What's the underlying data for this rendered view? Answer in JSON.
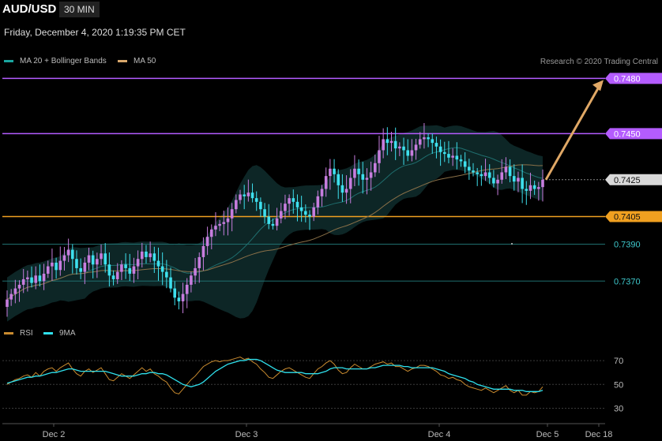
{
  "header": {
    "symbol": "AUD/USD",
    "timeframe": "30 MIN",
    "datetime": "Friday, December 4, 2020 1:19:35 PM CET",
    "copyright": "Research © 2020 Trading Central"
  },
  "legend_main": [
    {
      "label": "MA 20 + Bollinger Bands",
      "color": "#1aa6a0"
    },
    {
      "label": "MA 50",
      "color": "#d9a86c"
    }
  ],
  "legend_rsi": [
    {
      "label": "RSI",
      "color": "#c98b2f"
    },
    {
      "label": "9MA",
      "color": "#2fe0ec"
    }
  ],
  "colors": {
    "background": "#000000",
    "resistance": "#b45cff",
    "support_orange": "#f0a020",
    "support_teal": "#1f6e6e",
    "candle_up": "#c77dde",
    "candle_down": "#3ee0ee",
    "arrow": "#e0a866",
    "band_fill": "#0e2a2a"
  },
  "chart_data": [
    {
      "type": "candlestick",
      "title": "AUD/USD",
      "ylim": [
        0.7347,
        0.7484
      ],
      "x_ticks": [
        "Dec 2",
        "Dec 3",
        "Dec 4",
        "Dec 5",
        "Dec 18"
      ],
      "levels": [
        {
          "value": 0.748,
          "label": "0.7480",
          "kind": "resistance"
        },
        {
          "value": 0.745,
          "label": "0.7450",
          "kind": "resistance"
        },
        {
          "value": 0.7425,
          "label": "0.7425",
          "kind": "last"
        },
        {
          "value": 0.7405,
          "label": "0.7405",
          "kind": "support"
        },
        {
          "value": 0.739,
          "label": "0.7390",
          "kind": "support2"
        },
        {
          "value": 0.737,
          "label": "0.7370",
          "kind": "support2"
        }
      ],
      "projection": {
        "from": 0.7425,
        "to": 0.748
      },
      "close": [
        0.736,
        0.7363,
        0.7366,
        0.7368,
        0.7371,
        0.7372,
        0.7369,
        0.7373,
        0.737,
        0.7374,
        0.7378,
        0.738,
        0.7376,
        0.7381,
        0.7384,
        0.7387,
        0.7382,
        0.7377,
        0.7375,
        0.738,
        0.7384,
        0.7379,
        0.7382,
        0.7385,
        0.7379,
        0.7373,
        0.7371,
        0.7375,
        0.7379,
        0.7377,
        0.7374,
        0.7378,
        0.7382,
        0.7386,
        0.7383,
        0.7385,
        0.7381,
        0.7378,
        0.7375,
        0.7372,
        0.7366,
        0.7361,
        0.7359,
        0.7363,
        0.7368,
        0.7373,
        0.7377,
        0.7383,
        0.7389,
        0.7394,
        0.7398,
        0.74,
        0.7401,
        0.7402,
        0.7404,
        0.7409,
        0.7414,
        0.7417,
        0.7416,
        0.7418,
        0.7415,
        0.7413,
        0.7409,
        0.7405,
        0.7401,
        0.74,
        0.7404,
        0.7408,
        0.7412,
        0.7415,
        0.7413,
        0.741,
        0.7408,
        0.7406,
        0.7405,
        0.741,
        0.7416,
        0.742,
        0.7427,
        0.7431,
        0.7428,
        0.7422,
        0.7418,
        0.742,
        0.7426,
        0.7431,
        0.7428,
        0.7425,
        0.7426,
        0.7429,
        0.7434,
        0.7441,
        0.7447,
        0.7445,
        0.7446,
        0.7442,
        0.7443,
        0.7441,
        0.7438,
        0.7441,
        0.7444,
        0.7447,
        0.7448,
        0.7447,
        0.7445,
        0.7443,
        0.744,
        0.7439,
        0.7437,
        0.7438,
        0.7436,
        0.7435,
        0.7432,
        0.743,
        0.7429,
        0.7428,
        0.7427,
        0.7429,
        0.7426,
        0.7423,
        0.7425,
        0.7429,
        0.7432,
        0.7427,
        0.7424,
        0.7426,
        0.742,
        0.7419,
        0.7422,
        0.742,
        0.7421,
        0.7425
      ]
    },
    {
      "type": "line",
      "title": "RSI",
      "ylim": [
        25,
        78
      ],
      "y_ticks": [
        70,
        50,
        30
      ],
      "series": [
        {
          "name": "RSI",
          "values": [
            50,
            52,
            54,
            55,
            57,
            58,
            56,
            60,
            57,
            61,
            63,
            64,
            61,
            64,
            66,
            68,
            63,
            59,
            57,
            61,
            63,
            60,
            62,
            64,
            59,
            54,
            53,
            56,
            59,
            57,
            55,
            58,
            61,
            64,
            61,
            63,
            59,
            57,
            54,
            52,
            47,
            43,
            42,
            46,
            50,
            54,
            57,
            61,
            65,
            67,
            69,
            70,
            69,
            70,
            70,
            71,
            72,
            73,
            71,
            72,
            69,
            67,
            63,
            60,
            56,
            55,
            58,
            61,
            63,
            64,
            62,
            60,
            58,
            56,
            55,
            59,
            63,
            65,
            68,
            70,
            67,
            62,
            59,
            60,
            64,
            67,
            65,
            63,
            63,
            65,
            67,
            68,
            69,
            67,
            68,
            65,
            65,
            63,
            61,
            63,
            64,
            66,
            66,
            65,
            63,
            61,
            58,
            57,
            55,
            56,
            54,
            53,
            50,
            48,
            47,
            46,
            45,
            47,
            45,
            43,
            45,
            47,
            49,
            45,
            43,
            45,
            41,
            41,
            44,
            43,
            44,
            48
          ]
        },
        {
          "name": "9MA",
          "values": [
            51,
            52,
            53,
            54,
            55,
            56,
            56,
            57,
            57,
            58,
            59,
            60,
            60,
            61,
            62,
            63,
            63,
            62,
            61,
            61,
            61,
            61,
            61,
            61,
            61,
            60,
            59,
            58,
            57,
            57,
            57,
            57,
            58,
            59,
            59,
            60,
            60,
            59,
            59,
            58,
            56,
            54,
            52,
            50,
            49,
            48,
            49,
            50,
            52,
            55,
            58,
            61,
            63,
            65,
            67,
            68,
            69,
            70,
            70,
            71,
            71,
            71,
            70,
            68,
            66,
            64,
            62,
            61,
            60,
            60,
            60,
            60,
            60,
            59,
            59,
            59,
            59,
            60,
            61,
            63,
            64,
            64,
            64,
            63,
            63,
            63,
            63,
            63,
            63,
            64,
            64,
            65,
            66,
            66,
            66,
            66,
            66,
            65,
            65,
            64,
            64,
            64,
            64,
            64,
            64,
            63,
            62,
            61,
            59,
            58,
            57,
            56,
            55,
            53,
            52,
            50,
            49,
            48,
            47,
            46,
            46,
            46,
            46,
            46,
            45,
            45,
            45,
            44,
            44,
            44,
            44,
            45
          ]
        }
      ]
    }
  ]
}
